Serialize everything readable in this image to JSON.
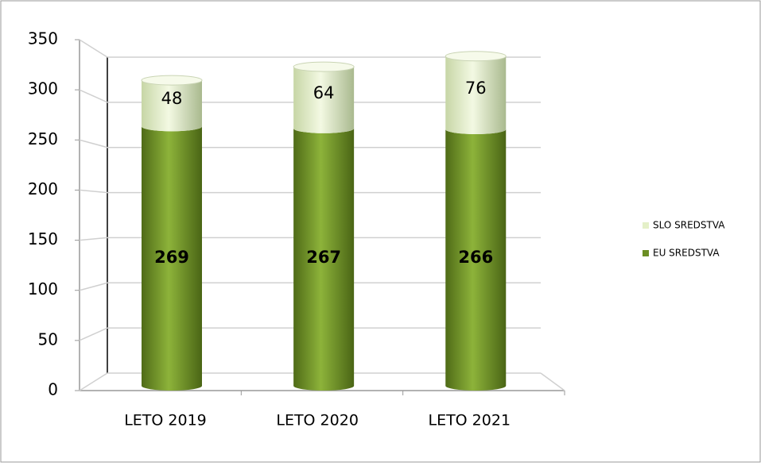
{
  "chart_data": {
    "type": "bar",
    "stacked": true,
    "categories": [
      "LETO 2019",
      "LETO 2020",
      "LETO 2021"
    ],
    "series": [
      {
        "name": "EU SREDSTVA",
        "color": "#6b8e23",
        "values": [
          269,
          267,
          266
        ]
      },
      {
        "name": "SLO SREDSTVA",
        "color": "#e4f0c8",
        "values": [
          48,
          64,
          76
        ]
      }
    ],
    "ylim": [
      0,
      350
    ],
    "yticks": [
      0,
      50,
      100,
      150,
      200,
      250,
      300,
      350
    ],
    "grid": true,
    "legend": "right"
  }
}
